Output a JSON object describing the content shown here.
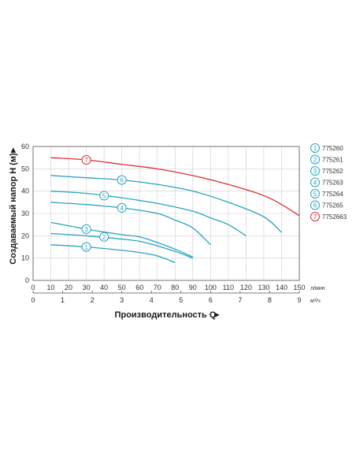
{
  "chart_data": {
    "type": "line",
    "xlabel": "Производительность Q",
    "ylabel": "Создаваемый напор H (м)",
    "x_unit_top": "л/мин",
    "x_unit_bottom": "м³/ч",
    "xlim": [
      0,
      150
    ],
    "ylim": [
      0,
      60
    ],
    "x_ticks": [
      0,
      10,
      20,
      30,
      40,
      50,
      60,
      70,
      80,
      90,
      100,
      110,
      120,
      130,
      140,
      150
    ],
    "x_ticks_m3h": [
      0,
      1,
      2,
      3,
      4,
      5,
      6,
      7,
      8,
      9
    ],
    "y_ticks": [
      0,
      10,
      20,
      30,
      40,
      50,
      60
    ],
    "grid": true,
    "legend_position": "right",
    "series": [
      {
        "name": "775260",
        "label": "1",
        "color": "#2aa3bf",
        "label_at": [
          30,
          15
        ],
        "points": [
          [
            10,
            16
          ],
          [
            30,
            15
          ],
          [
            50,
            13.5
          ],
          [
            60,
            12.5
          ],
          [
            70,
            11
          ],
          [
            80,
            8
          ]
        ]
      },
      {
        "name": "775261",
        "label": "2",
        "color": "#2aa3bf",
        "label_at": [
          40,
          19.5
        ],
        "points": [
          [
            10,
            21
          ],
          [
            30,
            20
          ],
          [
            50,
            18.5
          ],
          [
            60,
            17.5
          ],
          [
            70,
            15.5
          ],
          [
            80,
            13
          ],
          [
            90,
            10
          ]
        ]
      },
      {
        "name": "775262",
        "label": "3",
        "color": "#2aa3bf",
        "label_at": [
          30,
          23
        ],
        "points": [
          [
            10,
            26
          ],
          [
            30,
            23
          ],
          [
            50,
            20.5
          ],
          [
            60,
            19.5
          ],
          [
            70,
            17
          ],
          [
            80,
            14
          ],
          [
            90,
            10.5
          ]
        ]
      },
      {
        "name": "775263",
        "label": "4",
        "color": "#2aa3bf",
        "label_at": [
          50,
          32.5
        ],
        "points": [
          [
            10,
            35
          ],
          [
            30,
            34
          ],
          [
            50,
            32.5
          ],
          [
            70,
            30
          ],
          [
            80,
            27
          ],
          [
            90,
            23.5
          ],
          [
            100,
            16
          ]
        ]
      },
      {
        "name": "775264",
        "label": "5",
        "color": "#2aa3bf",
        "label_at": [
          40,
          38
        ],
        "points": [
          [
            10,
            40
          ],
          [
            30,
            39
          ],
          [
            50,
            37
          ],
          [
            70,
            34.5
          ],
          [
            90,
            31
          ],
          [
            100,
            28
          ],
          [
            110,
            25
          ],
          [
            120,
            20
          ]
        ]
      },
      {
        "name": "775265",
        "label": "6",
        "color": "#2aa3bf",
        "label_at": [
          50,
          45
        ],
        "points": [
          [
            10,
            47
          ],
          [
            30,
            46
          ],
          [
            50,
            45
          ],
          [
            70,
            43
          ],
          [
            90,
            40
          ],
          [
            110,
            35
          ],
          [
            130,
            28.5
          ],
          [
            140,
            21.5
          ]
        ]
      },
      {
        "name": "7752663",
        "label": "7",
        "color": "#d9323a",
        "label_at": [
          30,
          54
        ],
        "points": [
          [
            10,
            55
          ],
          [
            30,
            54
          ],
          [
            50,
            52
          ],
          [
            70,
            50
          ],
          [
            90,
            47
          ],
          [
            110,
            43
          ],
          [
            130,
            38
          ],
          [
            140,
            34
          ],
          [
            150,
            29
          ]
        ]
      }
    ]
  }
}
